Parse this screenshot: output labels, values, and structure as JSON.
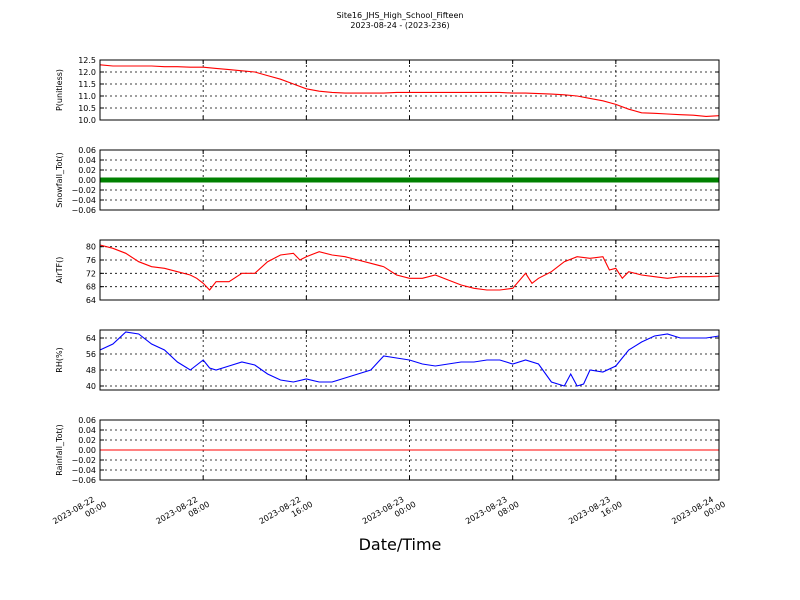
{
  "title": "Site16_JHS_High_School_Fifteen",
  "subtitle": "2023-08-24 - (2023-236)",
  "xlabel": "Date/Time",
  "chart_data": [
    {
      "type": "line",
      "ylabel": "P(unitless)",
      "ylim": [
        10.0,
        12.5
      ],
      "yticks": [
        "12.5",
        "12.0",
        "11.5",
        "11.0",
        "10.5",
        "10.0"
      ],
      "ytick_values": [
        12.5,
        12.0,
        11.5,
        11.0,
        10.5,
        10.0
      ],
      "grid": true,
      "series": [
        {
          "color": "#ff0000",
          "x_hours": [
            0,
            1,
            2,
            3,
            4,
            5,
            6,
            7,
            8,
            9,
            10,
            11,
            12,
            13,
            14,
            15,
            16,
            17,
            18,
            19,
            20,
            21,
            22,
            23,
            24,
            25,
            26,
            27,
            28,
            29,
            30,
            31,
            32,
            33,
            34,
            35,
            36,
            37,
            38,
            39,
            40,
            41,
            42,
            43,
            44,
            45,
            46,
            47,
            48
          ],
          "values": [
            12.3,
            12.25,
            12.25,
            12.25,
            12.25,
            12.22,
            12.22,
            12.2,
            12.2,
            12.15,
            12.1,
            12.05,
            12.0,
            11.85,
            11.7,
            11.5,
            11.3,
            11.2,
            11.15,
            11.12,
            11.12,
            11.12,
            11.12,
            11.15,
            11.15,
            11.15,
            11.15,
            11.15,
            11.15,
            11.15,
            11.15,
            11.15,
            11.12,
            11.12,
            11.1,
            11.08,
            11.05,
            11.0,
            10.9,
            10.8,
            10.65,
            10.45,
            10.3,
            10.28,
            10.25,
            10.22,
            10.2,
            10.15,
            10.18
          ]
        }
      ]
    },
    {
      "type": "line",
      "ylabel": "Snowfall_Tot()",
      "ylim": [
        -0.06,
        0.06
      ],
      "yticks": [
        "0.06",
        "0.04",
        "0.02",
        "0.00",
        "−0.02",
        "−0.04",
        "−0.06"
      ],
      "ytick_values": [
        0.06,
        0.04,
        0.02,
        0.0,
        -0.02,
        -0.04,
        -0.06
      ],
      "grid": true,
      "series": [
        {
          "color": "#008000",
          "marker": "dot",
          "x_hours": [
            0,
            48
          ],
          "values": [
            0,
            0
          ]
        }
      ]
    },
    {
      "type": "line",
      "ylabel": "AirTF()",
      "ylim": [
        64,
        82
      ],
      "yticks": [
        "80",
        "76",
        "72",
        "68",
        "64"
      ],
      "ytick_values": [
        80,
        76,
        72,
        68,
        64
      ],
      "grid": true,
      "series": [
        {
          "color": "#ff0000",
          "x_hours": [
            0,
            1,
            2,
            3,
            4,
            5,
            6,
            7,
            7.5,
            8,
            8.5,
            9,
            10,
            11,
            12,
            13,
            14,
            15,
            15.5,
            16,
            17,
            18,
            19,
            20,
            21,
            22,
            23,
            24,
            25,
            26,
            27,
            28,
            29,
            30,
            31,
            32,
            33,
            33.5,
            34,
            35,
            36,
            37,
            38,
            39,
            39.5,
            40,
            40.5,
            41,
            42,
            43,
            44,
            45,
            46,
            47,
            48
          ],
          "values": [
            80.5,
            79.5,
            78,
            75.5,
            74,
            73.5,
            72.5,
            71.5,
            70.5,
            69,
            67,
            69.5,
            69.5,
            72,
            72,
            75.5,
            77.5,
            78,
            76,
            77,
            78.5,
            77.5,
            77,
            76,
            75,
            74,
            71.5,
            70.5,
            70.5,
            71.5,
            70,
            68.5,
            67.5,
            67,
            67,
            67.5,
            72,
            69,
            70.5,
            72.5,
            75.5,
            77,
            76.5,
            77,
            73,
            73.5,
            70.5,
            72.5,
            71.5,
            71,
            70.5,
            71,
            71,
            71,
            71.2
          ]
        }
      ]
    },
    {
      "type": "line",
      "ylabel": "RH(%)",
      "ylim": [
        38,
        68
      ],
      "yticks": [
        "64",
        "56",
        "48",
        "40"
      ],
      "ytick_values": [
        64,
        56,
        48,
        40
      ],
      "grid": true,
      "series": [
        {
          "color": "#0000ff",
          "x_hours": [
            0,
            1,
            2,
            3,
            4,
            5,
            6,
            7,
            8,
            8.5,
            9,
            10,
            11,
            12,
            13,
            14,
            15,
            16,
            17,
            18,
            19,
            20,
            21,
            22,
            23,
            24,
            25,
            26,
            27,
            28,
            29,
            30,
            31,
            32,
            33,
            34,
            35,
            36,
            36.5,
            37,
            37.5,
            38,
            39,
            40,
            41,
            42,
            43,
            44,
            45,
            46,
            47,
            48
          ],
          "values": [
            58,
            61,
            67,
            66,
            61,
            58,
            52,
            48,
            53,
            49,
            48,
            50,
            52,
            50.5,
            46,
            43,
            42,
            43.5,
            42,
            42,
            44,
            46,
            48,
            55,
            54,
            53,
            51,
            50,
            51,
            52,
            52,
            53,
            53,
            51,
            53,
            51,
            42,
            40,
            46,
            40,
            41,
            48,
            47,
            50,
            58,
            62,
            65,
            66,
            64,
            64,
            64,
            65
          ]
        }
      ]
    },
    {
      "type": "line",
      "ylabel": "Rainfall_Tot()",
      "ylim": [
        -0.06,
        0.06
      ],
      "yticks": [
        "0.06",
        "0.04",
        "0.02",
        "0.00",
        "−0.02",
        "−0.04",
        "−0.06"
      ],
      "ytick_values": [
        0.06,
        0.04,
        0.02,
        0.0,
        -0.02,
        -0.04,
        -0.06
      ],
      "grid": true,
      "series": [
        {
          "color": "#ff0000",
          "x_hours": [
            0,
            48
          ],
          "values": [
            0,
            0
          ]
        }
      ]
    }
  ],
  "x_axis": {
    "tick_hours": [
      0,
      8,
      16,
      24,
      32,
      40,
      48
    ],
    "tick_dates": [
      "2023-08-22",
      "2023-08-22",
      "2023-08-22",
      "2023-08-23",
      "2023-08-23",
      "2023-08-23",
      "2023-08-24"
    ],
    "tick_times": [
      "00:00",
      "08:00",
      "16:00",
      "00:00",
      "08:00",
      "16:00",
      "00:00"
    ]
  }
}
